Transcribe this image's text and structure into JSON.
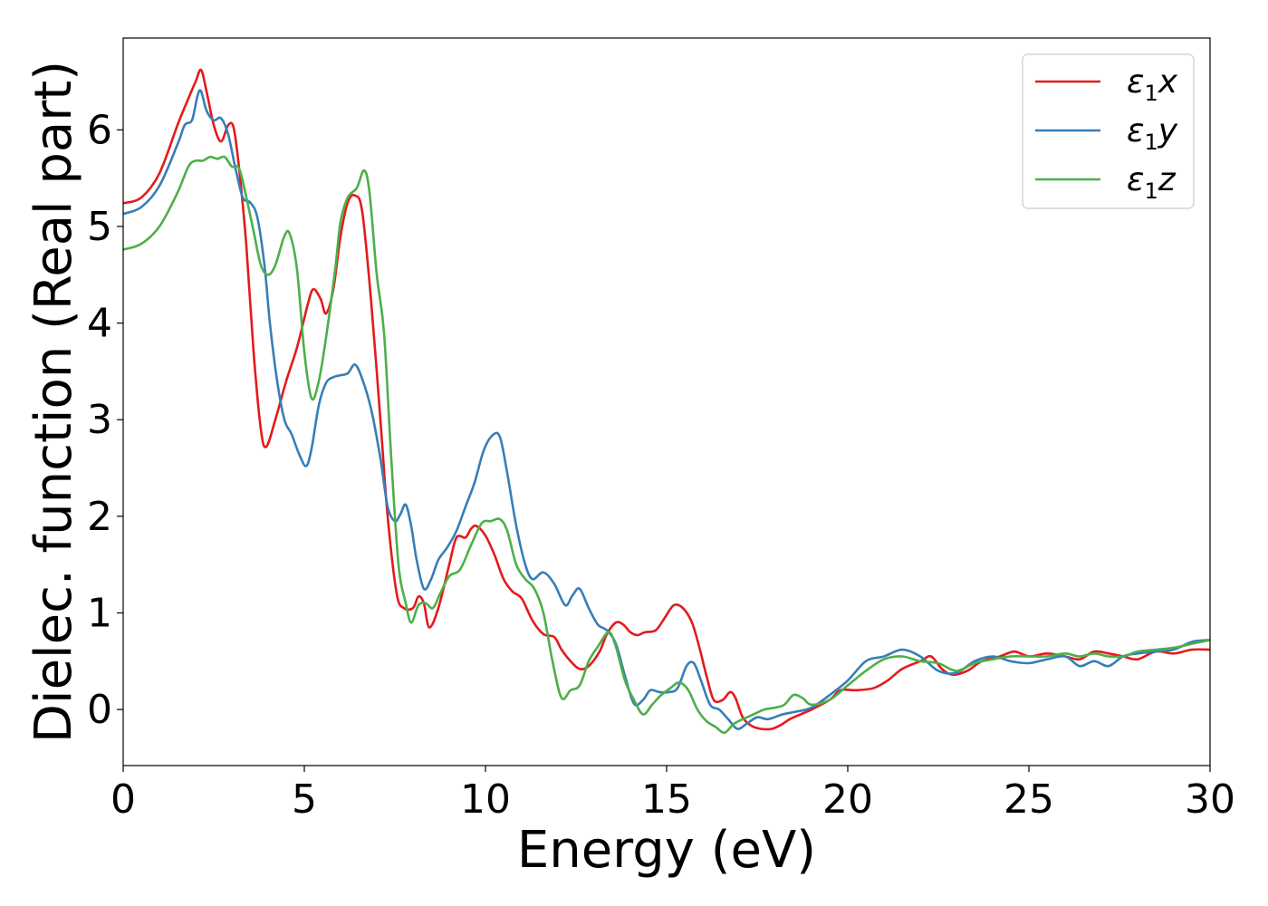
{
  "chart_data": {
    "type": "line",
    "xlabel": "Energy (eV)",
    "ylabel": "Dielec. function (Real part)",
    "xlim": [
      0,
      30
    ],
    "ylim": [
      -0.58,
      6.95
    ],
    "xticks": [
      0,
      5,
      10,
      15,
      20,
      25,
      30
    ],
    "yticks": [
      0,
      1,
      2,
      3,
      4,
      5,
      6
    ],
    "grid": false,
    "legend_position": "top-right",
    "series": [
      {
        "name": "ε1x",
        "legend": {
          "base": "ε",
          "sub": "1",
          "suffix": "x"
        },
        "color": "#e41a1c",
        "points": [
          [
            0,
            5.24
          ],
          [
            0.5,
            5.3
          ],
          [
            1.0,
            5.55
          ],
          [
            1.5,
            6.05
          ],
          [
            1.75,
            6.28
          ],
          [
            2.0,
            6.5
          ],
          [
            2.15,
            6.62
          ],
          [
            2.3,
            6.4
          ],
          [
            2.5,
            6.05
          ],
          [
            2.7,
            5.88
          ],
          [
            2.9,
            6.05
          ],
          [
            3.05,
            6.02
          ],
          [
            3.2,
            5.6
          ],
          [
            3.4,
            4.8
          ],
          [
            3.6,
            3.7
          ],
          [
            3.8,
            2.9
          ],
          [
            3.95,
            2.72
          ],
          [
            4.2,
            3.0
          ],
          [
            4.5,
            3.4
          ],
          [
            4.8,
            3.75
          ],
          [
            5.1,
            4.2
          ],
          [
            5.25,
            4.35
          ],
          [
            5.45,
            4.25
          ],
          [
            5.6,
            4.1
          ],
          [
            5.8,
            4.35
          ],
          [
            6.0,
            4.9
          ],
          [
            6.2,
            5.25
          ],
          [
            6.4,
            5.32
          ],
          [
            6.6,
            5.15
          ],
          [
            6.85,
            4.2
          ],
          [
            7.1,
            3.0
          ],
          [
            7.3,
            2.0
          ],
          [
            7.55,
            1.2
          ],
          [
            7.75,
            1.05
          ],
          [
            8.0,
            1.05
          ],
          [
            8.15,
            1.17
          ],
          [
            8.3,
            1.1
          ],
          [
            8.45,
            0.85
          ],
          [
            8.7,
            1.05
          ],
          [
            9.0,
            1.5
          ],
          [
            9.2,
            1.78
          ],
          [
            9.45,
            1.78
          ],
          [
            9.6,
            1.87
          ],
          [
            9.75,
            1.9
          ],
          [
            10.0,
            1.8
          ],
          [
            10.25,
            1.6
          ],
          [
            10.5,
            1.35
          ],
          [
            10.75,
            1.22
          ],
          [
            11.0,
            1.15
          ],
          [
            11.3,
            0.92
          ],
          [
            11.6,
            0.78
          ],
          [
            11.9,
            0.75
          ],
          [
            12.1,
            0.62
          ],
          [
            12.35,
            0.5
          ],
          [
            12.6,
            0.42
          ],
          [
            12.85,
            0.45
          ],
          [
            13.15,
            0.6
          ],
          [
            13.35,
            0.78
          ],
          [
            13.6,
            0.9
          ],
          [
            13.8,
            0.88
          ],
          [
            14.0,
            0.8
          ],
          [
            14.2,
            0.77
          ],
          [
            14.4,
            0.8
          ],
          [
            14.7,
            0.82
          ],
          [
            14.95,
            0.95
          ],
          [
            15.2,
            1.08
          ],
          [
            15.45,
            1.05
          ],
          [
            15.7,
            0.9
          ],
          [
            15.9,
            0.65
          ],
          [
            16.1,
            0.35
          ],
          [
            16.3,
            0.1
          ],
          [
            16.55,
            0.1
          ],
          [
            16.75,
            0.18
          ],
          [
            16.9,
            0.12
          ],
          [
            17.1,
            -0.08
          ],
          [
            17.35,
            -0.17
          ],
          [
            17.6,
            -0.2
          ],
          [
            17.9,
            -0.2
          ],
          [
            18.15,
            -0.16
          ],
          [
            18.4,
            -0.1
          ],
          [
            18.7,
            -0.05
          ],
          [
            19.0,
            0.0
          ],
          [
            19.5,
            0.1
          ],
          [
            19.8,
            0.2
          ],
          [
            20.2,
            0.2
          ],
          [
            20.7,
            0.22
          ],
          [
            21.1,
            0.3
          ],
          [
            21.5,
            0.42
          ],
          [
            22.0,
            0.5
          ],
          [
            22.3,
            0.55
          ],
          [
            22.6,
            0.42
          ],
          [
            22.9,
            0.36
          ],
          [
            23.3,
            0.4
          ],
          [
            23.7,
            0.5
          ],
          [
            24.2,
            0.55
          ],
          [
            24.6,
            0.6
          ],
          [
            25.0,
            0.55
          ],
          [
            25.5,
            0.58
          ],
          [
            26.0,
            0.55
          ],
          [
            26.4,
            0.52
          ],
          [
            26.8,
            0.6
          ],
          [
            27.2,
            0.58
          ],
          [
            27.6,
            0.55
          ],
          [
            28.0,
            0.52
          ],
          [
            28.5,
            0.6
          ],
          [
            29.0,
            0.58
          ],
          [
            29.5,
            0.62
          ],
          [
            30.0,
            0.62
          ]
        ]
      },
      {
        "name": "ε1y",
        "legend": {
          "base": "ε",
          "sub": "1",
          "suffix": "y"
        },
        "color": "#377eb8",
        "points": [
          [
            0,
            5.13
          ],
          [
            0.5,
            5.2
          ],
          [
            1.0,
            5.42
          ],
          [
            1.5,
            5.85
          ],
          [
            1.7,
            6.05
          ],
          [
            1.9,
            6.1
          ],
          [
            2.05,
            6.35
          ],
          [
            2.15,
            6.4
          ],
          [
            2.3,
            6.2
          ],
          [
            2.5,
            6.1
          ],
          [
            2.7,
            6.12
          ],
          [
            2.9,
            5.95
          ],
          [
            3.1,
            5.6
          ],
          [
            3.3,
            5.3
          ],
          [
            3.5,
            5.25
          ],
          [
            3.7,
            5.1
          ],
          [
            3.9,
            4.6
          ],
          [
            4.05,
            4.0
          ],
          [
            4.25,
            3.4
          ],
          [
            4.45,
            3.0
          ],
          [
            4.65,
            2.85
          ],
          [
            4.85,
            2.65
          ],
          [
            5.05,
            2.52
          ],
          [
            5.2,
            2.7
          ],
          [
            5.4,
            3.15
          ],
          [
            5.6,
            3.38
          ],
          [
            5.8,
            3.44
          ],
          [
            6.0,
            3.46
          ],
          [
            6.2,
            3.48
          ],
          [
            6.4,
            3.57
          ],
          [
            6.6,
            3.42
          ],
          [
            6.85,
            3.1
          ],
          [
            7.1,
            2.6
          ],
          [
            7.3,
            2.1
          ],
          [
            7.5,
            1.95
          ],
          [
            7.65,
            2.02
          ],
          [
            7.8,
            2.12
          ],
          [
            7.95,
            1.9
          ],
          [
            8.1,
            1.55
          ],
          [
            8.3,
            1.25
          ],
          [
            8.5,
            1.35
          ],
          [
            8.7,
            1.55
          ],
          [
            8.95,
            1.68
          ],
          [
            9.2,
            1.85
          ],
          [
            9.45,
            2.1
          ],
          [
            9.7,
            2.35
          ],
          [
            9.95,
            2.68
          ],
          [
            10.2,
            2.84
          ],
          [
            10.4,
            2.82
          ],
          [
            10.6,
            2.45
          ],
          [
            10.85,
            1.9
          ],
          [
            11.1,
            1.5
          ],
          [
            11.3,
            1.35
          ],
          [
            11.6,
            1.42
          ],
          [
            11.9,
            1.3
          ],
          [
            12.2,
            1.08
          ],
          [
            12.4,
            1.18
          ],
          [
            12.6,
            1.25
          ],
          [
            12.85,
            1.05
          ],
          [
            13.1,
            0.88
          ],
          [
            13.35,
            0.82
          ],
          [
            13.6,
            0.68
          ],
          [
            13.85,
            0.35
          ],
          [
            14.1,
            0.06
          ],
          [
            14.35,
            0.1
          ],
          [
            14.55,
            0.2
          ],
          [
            14.8,
            0.18
          ],
          [
            15.05,
            0.18
          ],
          [
            15.3,
            0.22
          ],
          [
            15.55,
            0.45
          ],
          [
            15.75,
            0.48
          ],
          [
            15.95,
            0.3
          ],
          [
            16.2,
            0.05
          ],
          [
            16.45,
            0.0
          ],
          [
            16.7,
            -0.1
          ],
          [
            16.95,
            -0.2
          ],
          [
            17.2,
            -0.15
          ],
          [
            17.5,
            -0.08
          ],
          [
            17.8,
            -0.1
          ],
          [
            18.2,
            -0.05
          ],
          [
            18.6,
            -0.02
          ],
          [
            19.0,
            0.02
          ],
          [
            19.5,
            0.15
          ],
          [
            20.0,
            0.3
          ],
          [
            20.5,
            0.5
          ],
          [
            21.0,
            0.55
          ],
          [
            21.5,
            0.62
          ],
          [
            22.0,
            0.55
          ],
          [
            22.5,
            0.4
          ],
          [
            23.0,
            0.38
          ],
          [
            23.5,
            0.5
          ],
          [
            24.0,
            0.55
          ],
          [
            24.5,
            0.5
          ],
          [
            25.0,
            0.48
          ],
          [
            25.5,
            0.52
          ],
          [
            26.0,
            0.55
          ],
          [
            26.4,
            0.45
          ],
          [
            26.8,
            0.5
          ],
          [
            27.2,
            0.45
          ],
          [
            27.6,
            0.55
          ],
          [
            28.0,
            0.58
          ],
          [
            28.5,
            0.6
          ],
          [
            29.0,
            0.62
          ],
          [
            29.5,
            0.7
          ],
          [
            30.0,
            0.72
          ]
        ]
      },
      {
        "name": "ε1z",
        "legend": {
          "base": "ε",
          "sub": "1",
          "suffix": "z"
        },
        "color": "#4daf4a",
        "points": [
          [
            0,
            4.76
          ],
          [
            0.5,
            4.82
          ],
          [
            1.0,
            5.0
          ],
          [
            1.5,
            5.35
          ],
          [
            1.8,
            5.62
          ],
          [
            2.0,
            5.68
          ],
          [
            2.2,
            5.68
          ],
          [
            2.4,
            5.72
          ],
          [
            2.6,
            5.7
          ],
          [
            2.8,
            5.72
          ],
          [
            3.0,
            5.62
          ],
          [
            3.2,
            5.6
          ],
          [
            3.4,
            5.3
          ],
          [
            3.6,
            4.95
          ],
          [
            3.8,
            4.6
          ],
          [
            4.0,
            4.5
          ],
          [
            4.2,
            4.6
          ],
          [
            4.45,
            4.9
          ],
          [
            4.6,
            4.92
          ],
          [
            4.8,
            4.55
          ],
          [
            5.0,
            3.7
          ],
          [
            5.2,
            3.22
          ],
          [
            5.4,
            3.4
          ],
          [
            5.6,
            3.85
          ],
          [
            5.85,
            4.55
          ],
          [
            6.0,
            5.05
          ],
          [
            6.2,
            5.3
          ],
          [
            6.45,
            5.4
          ],
          [
            6.65,
            5.58
          ],
          [
            6.8,
            5.35
          ],
          [
            7.0,
            4.5
          ],
          [
            7.2,
            3.9
          ],
          [
            7.4,
            2.6
          ],
          [
            7.6,
            1.5
          ],
          [
            7.8,
            1.1
          ],
          [
            7.95,
            0.9
          ],
          [
            8.15,
            1.08
          ],
          [
            8.35,
            1.1
          ],
          [
            8.55,
            1.05
          ],
          [
            8.75,
            1.2
          ],
          [
            9.0,
            1.38
          ],
          [
            9.3,
            1.45
          ],
          [
            9.6,
            1.7
          ],
          [
            9.9,
            1.93
          ],
          [
            10.15,
            1.95
          ],
          [
            10.4,
            1.97
          ],
          [
            10.6,
            1.85
          ],
          [
            10.85,
            1.5
          ],
          [
            11.1,
            1.35
          ],
          [
            11.35,
            1.25
          ],
          [
            11.6,
            1.0
          ],
          [
            11.85,
            0.5
          ],
          [
            12.1,
            0.12
          ],
          [
            12.35,
            0.2
          ],
          [
            12.6,
            0.25
          ],
          [
            12.85,
            0.5
          ],
          [
            13.1,
            0.65
          ],
          [
            13.4,
            0.8
          ],
          [
            13.6,
            0.65
          ],
          [
            13.85,
            0.3
          ],
          [
            14.1,
            0.1
          ],
          [
            14.35,
            -0.05
          ],
          [
            14.6,
            0.05
          ],
          [
            14.85,
            0.15
          ],
          [
            15.1,
            0.22
          ],
          [
            15.35,
            0.28
          ],
          [
            15.6,
            0.2
          ],
          [
            15.85,
            0.0
          ],
          [
            16.1,
            -0.12
          ],
          [
            16.35,
            -0.18
          ],
          [
            16.6,
            -0.24
          ],
          [
            16.85,
            -0.15
          ],
          [
            17.1,
            -0.1
          ],
          [
            17.4,
            -0.05
          ],
          [
            17.7,
            0.0
          ],
          [
            18.0,
            0.02
          ],
          [
            18.25,
            0.05
          ],
          [
            18.5,
            0.15
          ],
          [
            18.75,
            0.12
          ],
          [
            19.0,
            0.05
          ],
          [
            19.5,
            0.1
          ],
          [
            20.0,
            0.25
          ],
          [
            20.5,
            0.4
          ],
          [
            21.0,
            0.52
          ],
          [
            21.5,
            0.55
          ],
          [
            22.0,
            0.5
          ],
          [
            22.5,
            0.48
          ],
          [
            23.0,
            0.4
          ],
          [
            23.5,
            0.48
          ],
          [
            24.0,
            0.52
          ],
          [
            24.5,
            0.55
          ],
          [
            25.0,
            0.55
          ],
          [
            25.5,
            0.55
          ],
          [
            26.0,
            0.58
          ],
          [
            26.4,
            0.55
          ],
          [
            26.8,
            0.58
          ],
          [
            27.2,
            0.55
          ],
          [
            27.6,
            0.55
          ],
          [
            28.0,
            0.6
          ],
          [
            28.5,
            0.62
          ],
          [
            29.0,
            0.64
          ],
          [
            29.5,
            0.68
          ],
          [
            30.0,
            0.72
          ]
        ]
      }
    ]
  }
}
